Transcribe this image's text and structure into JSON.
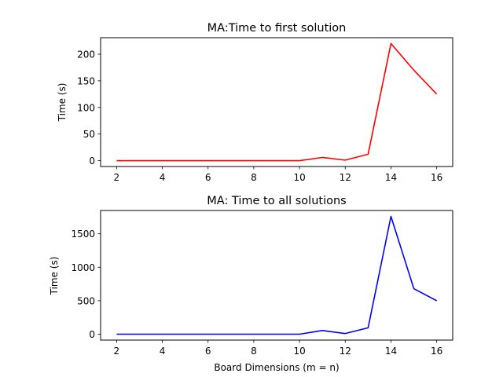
{
  "chart_data": [
    {
      "type": "line",
      "title": "MA:Time to first solution",
      "xlabel": "",
      "ylabel": "Time (s)",
      "x": [
        2,
        3,
        4,
        5,
        6,
        7,
        8,
        9,
        10,
        11,
        12,
        13,
        14,
        15,
        16
      ],
      "series": [
        {
          "color": "#ff0000",
          "values": [
            0,
            0,
            0,
            0,
            0,
            0,
            0,
            0,
            0,
            6,
            1,
            12,
            220,
            170,
            125
          ]
        }
      ],
      "xlim": [
        1.3,
        16.7
      ],
      "ylim": [
        -11,
        231
      ],
      "xticks": [
        2,
        4,
        6,
        8,
        10,
        12,
        14,
        16
      ],
      "yticks": [
        0,
        50,
        100,
        150,
        200
      ],
      "grid": false,
      "legend": "none"
    },
    {
      "type": "line",
      "title": "MA: Time to all solutions",
      "xlabel": "Board Dimensions (m = n)",
      "ylabel": "Time (s)",
      "x": [
        2,
        3,
        4,
        5,
        6,
        7,
        8,
        9,
        10,
        11,
        12,
        13,
        14,
        15,
        16
      ],
      "series": [
        {
          "color": "#0000ff",
          "values": [
            0,
            0,
            0,
            0,
            0,
            0,
            0,
            0,
            0,
            55,
            10,
            95,
            1760,
            680,
            500
          ]
        }
      ],
      "xlim": [
        1.3,
        16.7
      ],
      "ylim": [
        -88,
        1848
      ],
      "xticks": [
        2,
        4,
        6,
        8,
        10,
        12,
        14,
        16
      ],
      "yticks": [
        0,
        500,
        1000,
        1500
      ],
      "grid": false,
      "legend": "none"
    }
  ]
}
